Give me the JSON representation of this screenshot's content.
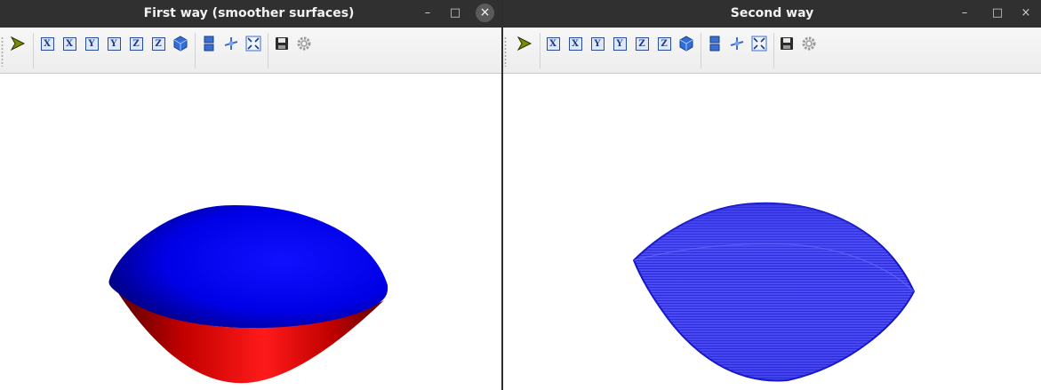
{
  "windows": [
    {
      "title": "First way (smoother surfaces)",
      "controls": {
        "minimize": "–",
        "maximize": "□",
        "close": "×"
      },
      "toolbar": {
        "axis_buttons": [
          "X",
          "X",
          "Y",
          "Y",
          "Z",
          "Z"
        ],
        "icons": [
          "pointer-icon",
          "iso-cube-icon",
          "stack-icon",
          "rotate-icon",
          "fit-icon",
          "save-icon",
          "settings-icon"
        ]
      },
      "colors": {
        "top_surface": "#0000ff",
        "bottom_surface": "#e00000"
      }
    },
    {
      "title": "Second way",
      "controls": {
        "minimize": "–",
        "maximize": "□",
        "close": "×"
      },
      "toolbar": {
        "axis_buttons": [
          "X",
          "X",
          "Y",
          "Y",
          "Z",
          "Z"
        ],
        "icons": [
          "pointer-icon",
          "iso-cube-icon",
          "stack-icon",
          "rotate-icon",
          "fit-icon",
          "save-icon",
          "settings-icon"
        ]
      },
      "colors": {
        "surface": "#3030ee"
      }
    }
  ]
}
